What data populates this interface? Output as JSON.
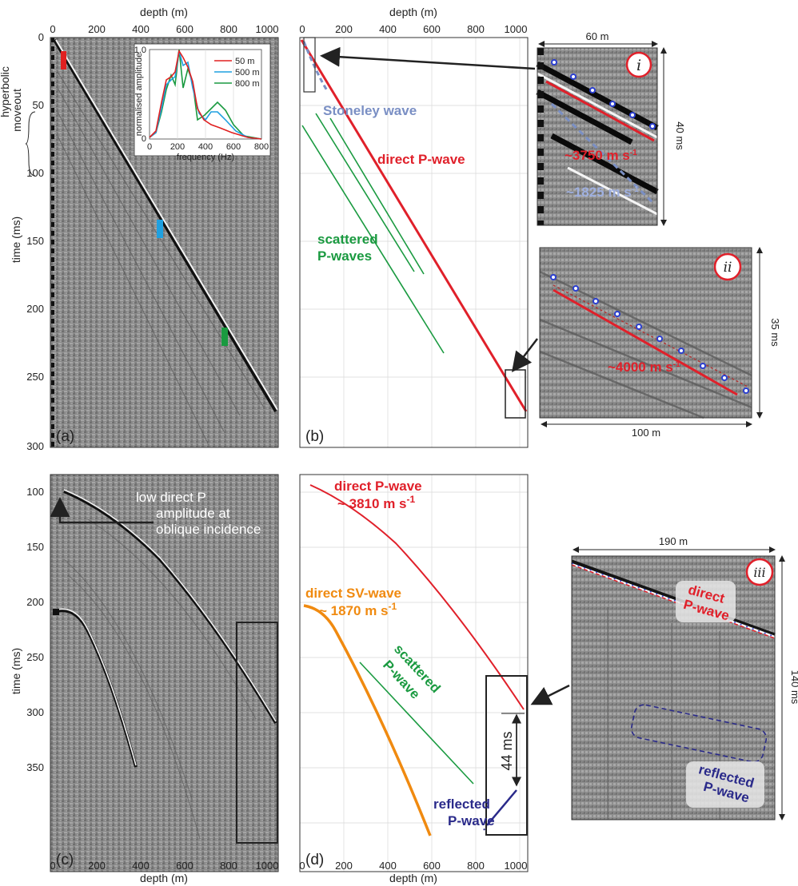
{
  "axes": {
    "depth_label": "depth (m)",
    "time_label": "time (ms)",
    "depth_ticks": [
      "0",
      "200",
      "400",
      "600",
      "800",
      "1000"
    ],
    "time_ticks_top": [
      "0",
      "50",
      "100",
      "150",
      "200",
      "250",
      "300"
    ],
    "time_ticks_bottom": [
      "100",
      "150",
      "200",
      "250",
      "300",
      "350"
    ]
  },
  "panel_letters": {
    "a": "(a)",
    "b": "(b)",
    "c": "(c)",
    "d": "(d)"
  },
  "panel_a": {
    "side_label_1": "hyperbolic",
    "side_label_2": "moveout",
    "inset": {
      "ylabel": "normalised amplitude",
      "xlabel": "frequency (Hz)",
      "y_tick_top": "1.0",
      "y_tick_bottom": "0",
      "x_ticks": [
        "0",
        "200",
        "400",
        "600",
        "800"
      ],
      "legend": [
        {
          "label": "50 m",
          "color": "#e02020"
        },
        {
          "label": "500 m",
          "color": "#1fa0e0"
        },
        {
          "label": "800 m",
          "color": "#1a9a40"
        }
      ]
    }
  },
  "panel_b": {
    "stoneley": "Stoneley wave",
    "direct_p": "direct P-wave",
    "scattered_1": "scattered",
    "scattered_2": "P-waves"
  },
  "panel_c": {
    "annotation_1": "low direct P",
    "annotation_2": "amplitude at",
    "annotation_3": "oblique incidence"
  },
  "panel_d": {
    "direct_p_1": "direct P-wave",
    "direct_p_2": "~ 3810 m s",
    "direct_sv_1": "direct SV-wave",
    "direct_sv_2": "~ 1870 m s",
    "scattered_1": "scattered",
    "scattered_2": "P-wave",
    "delay": "44 ms",
    "reflected_1": "reflected",
    "reflected_2": "P-wave",
    "superscript": "-1"
  },
  "zoom_i": {
    "roman": "i",
    "width": "60 m",
    "height": "40 ms",
    "v_red": "~3750 m s",
    "v_blue": "~1825 m s",
    "superscript": "-1"
  },
  "zoom_ii": {
    "roman": "ii",
    "width": "100 m",
    "height": "35 ms",
    "v_red": "~4000 m s",
    "superscript": "-1"
  },
  "zoom_iii": {
    "roman": "iii",
    "width": "190 m",
    "height": "140 ms",
    "direct_1": "direct",
    "direct_2": "P-wave",
    "reflected_1": "reflected",
    "reflected_2": "P-wave"
  },
  "colors": {
    "direct_p": "#e0202a",
    "scattered": "#1a9a40",
    "stoneley": "#7a8fc4",
    "sv": "#f08a10",
    "reflected": "#2a2a8a"
  }
}
